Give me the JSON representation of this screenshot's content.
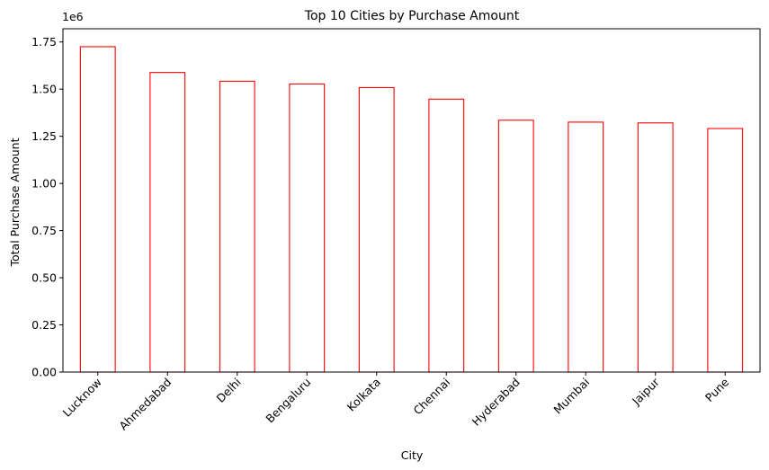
{
  "chart_data": {
    "type": "bar",
    "title": "Top 10 Cities by Purchase Amount",
    "xlabel": "City",
    "ylabel": "Total Purchase Amount",
    "y_offset_label": "1e6",
    "categories": [
      "Lucknow",
      "Ahmedabad",
      "Delhi",
      "Bengaluru",
      "Kolkata",
      "Chennai",
      "Hyderabad",
      "Mumbai",
      "Jaipur",
      "Pune"
    ],
    "values": [
      1725000,
      1588000,
      1542000,
      1527000,
      1508000,
      1447000,
      1335000,
      1325000,
      1321000,
      1291000
    ],
    "ylim": [
      0,
      1820000
    ],
    "yticks": [
      0,
      250000,
      500000,
      750000,
      1000000,
      1250000,
      1500000,
      1750000
    ],
    "ytick_labels": [
      "0.00",
      "0.25",
      "0.50",
      "0.75",
      "1.00",
      "1.25",
      "1.50",
      "1.75"
    ],
    "bar_fill": "#ffffff",
    "bar_edge_color": "#ff0000",
    "grid": false,
    "legend": "none"
  }
}
